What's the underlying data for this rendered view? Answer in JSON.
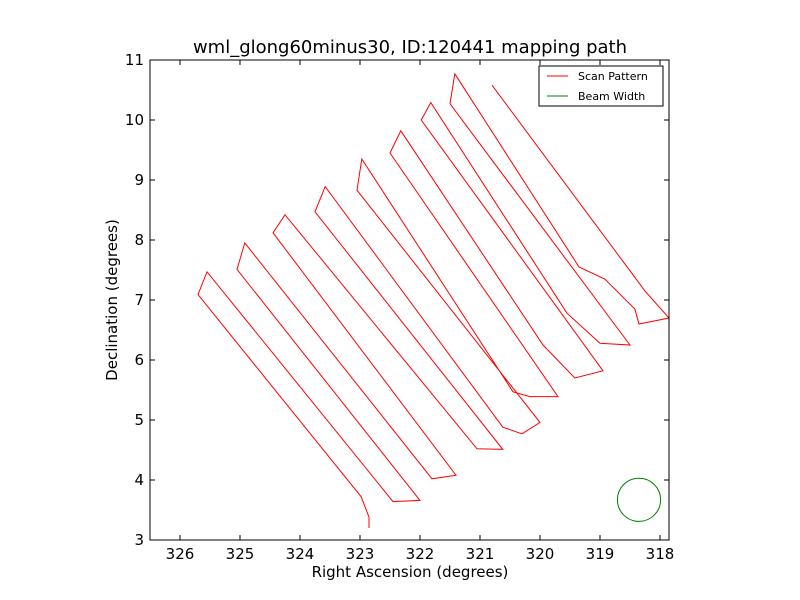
{
  "chart_data": {
    "type": "line",
    "title": "wml_glong60minus30, ID:120441 mapping path",
    "xlabel": "Right Ascension (degrees)",
    "ylabel": "Declination (degrees)",
    "xlim": [
      326.5,
      317.85
    ],
    "ylim": [
      3,
      11
    ],
    "x_ticks": [
      "326",
      "325",
      "324",
      "323",
      "322",
      "321",
      "320",
      "319",
      "318"
    ],
    "y_ticks": [
      "3",
      "4",
      "5",
      "6",
      "7",
      "8",
      "9",
      "10",
      "11"
    ],
    "grid": false,
    "legend_position": "top-right",
    "series": [
      {
        "name": "Scan Pattern",
        "color": "#ff0000",
        "points": [
          [
            322.85,
            3.2
          ],
          [
            322.85,
            3.38
          ],
          [
            322.98,
            3.72
          ],
          [
            325.7,
            7.09
          ],
          [
            325.55,
            7.47
          ],
          [
            322.45,
            3.64
          ],
          [
            322.0,
            3.66
          ],
          [
            325.05,
            7.51
          ],
          [
            324.92,
            7.95
          ],
          [
            321.8,
            4.02
          ],
          [
            321.4,
            4.08
          ],
          [
            324.45,
            8.12
          ],
          [
            324.25,
            8.42
          ],
          [
            321.05,
            4.52
          ],
          [
            320.62,
            4.51
          ],
          [
            323.75,
            8.47
          ],
          [
            323.58,
            8.89
          ],
          [
            320.62,
            4.88
          ],
          [
            320.3,
            4.77
          ],
          [
            320.0,
            4.96
          ],
          [
            323.05,
            8.83
          ],
          [
            322.97,
            9.35
          ],
          [
            320.45,
            5.47
          ],
          [
            320.17,
            5.39
          ],
          [
            319.7,
            5.39
          ],
          [
            322.5,
            9.45
          ],
          [
            322.32,
            9.82
          ],
          [
            319.95,
            6.25
          ],
          [
            319.42,
            5.7
          ],
          [
            318.95,
            5.82
          ],
          [
            321.98,
            10.0
          ],
          [
            321.82,
            10.29
          ],
          [
            319.55,
            6.78
          ],
          [
            319.0,
            6.28
          ],
          [
            318.5,
            6.25
          ],
          [
            321.5,
            10.27
          ],
          [
            321.42,
            10.77
          ],
          [
            319.35,
            7.55
          ],
          [
            318.92,
            7.35
          ],
          [
            318.42,
            6.85
          ],
          [
            318.35,
            6.6
          ],
          [
            317.85,
            6.7
          ],
          [
            318.25,
            7.15
          ],
          [
            320.8,
            10.58
          ]
        ]
      },
      {
        "name": "Beam Width",
        "color": "#008000",
        "center": [
          318.35,
          3.67
        ],
        "radius_deg": 0.36
      }
    ]
  }
}
